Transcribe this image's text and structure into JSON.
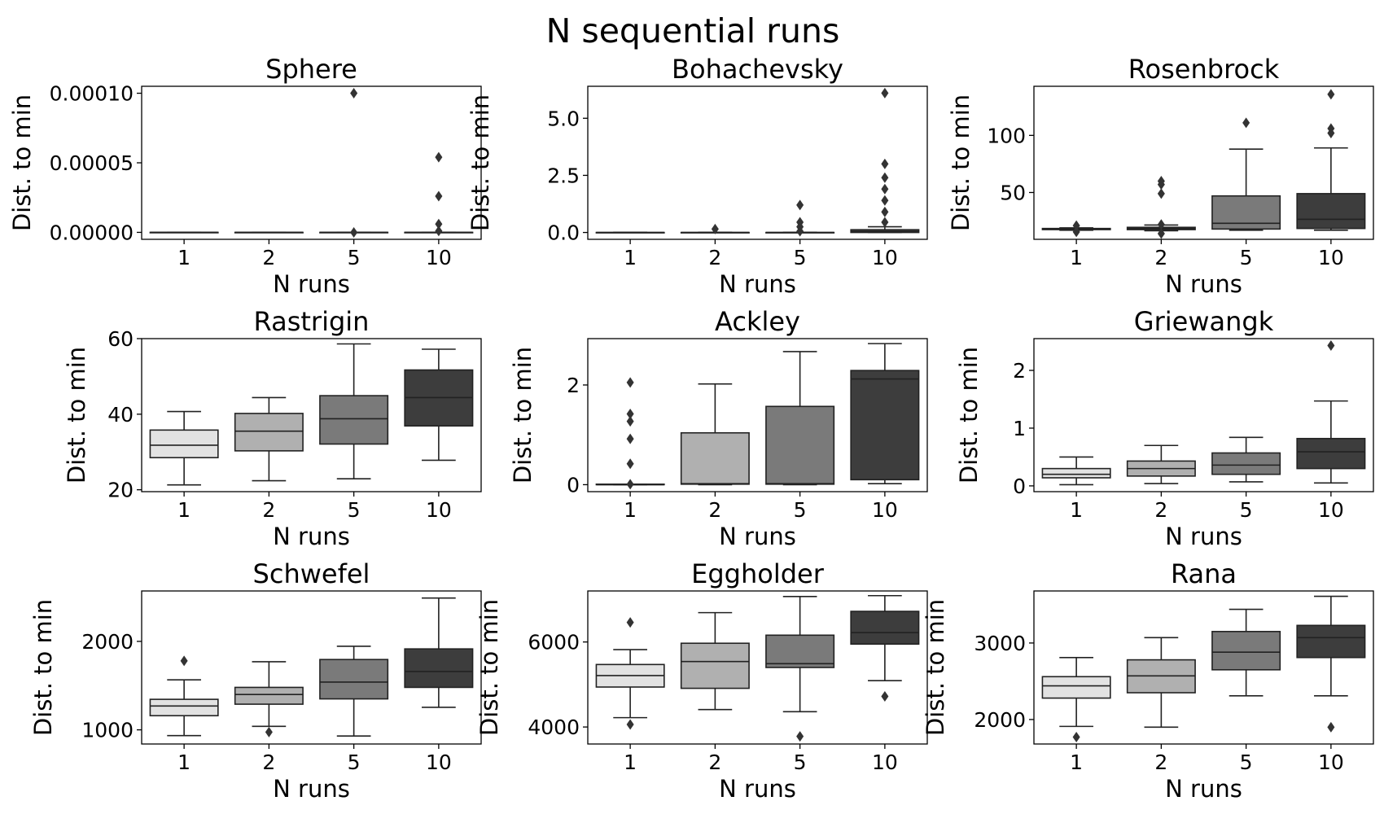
{
  "figure": {
    "suptitle": "N sequential runs",
    "box_colors": [
      "#e2e2e2",
      "#b0b0b0",
      "#7a7a7a",
      "#3d3d3d"
    ],
    "line_color": "#222222"
  },
  "chart_data": [
    {
      "type": "box",
      "title": "Sphere",
      "xlabel": "N runs",
      "ylabel": "Dist. to min",
      "categories": [
        "1",
        "2",
        "5",
        "10"
      ],
      "ylim": [
        -5e-06,
        0.000105
      ],
      "yticks": [
        0.0,
        5e-05,
        0.0001
      ],
      "ytick_labels": [
        "0.00000",
        "0.00005",
        "0.00010"
      ],
      "boxes": [
        {
          "whislo": 0,
          "q1": 0,
          "med": 0,
          "q3": 0,
          "whishi": 0,
          "fliers": []
        },
        {
          "whislo": 0,
          "q1": 0,
          "med": 0,
          "q3": 0,
          "whishi": 0,
          "fliers": []
        },
        {
          "whislo": 0,
          "q1": 0,
          "med": 0,
          "q3": 0,
          "whishi": 0,
          "fliers": [
            0.0001,
            0.0
          ]
        },
        {
          "whislo": 0,
          "q1": 0,
          "med": 0,
          "q3": 0,
          "whishi": 0,
          "fliers": [
            5.4e-05,
            2.6e-05,
            6e-06,
            1e-06
          ]
        }
      ]
    },
    {
      "type": "box",
      "title": "Bohachevsky",
      "xlabel": "N runs",
      "ylabel": "Dist. to min",
      "categories": [
        "1",
        "2",
        "5",
        "10"
      ],
      "ylim": [
        -0.3,
        6.4
      ],
      "yticks": [
        0.0,
        2.5,
        5.0
      ],
      "ytick_labels": [
        "0.0",
        "2.5",
        "5.0"
      ],
      "boxes": [
        {
          "whislo": 0,
          "q1": 0,
          "med": 0,
          "q3": 0,
          "whishi": 0,
          "fliers": []
        },
        {
          "whislo": 0,
          "q1": 0,
          "med": 0,
          "q3": 0,
          "whishi": 0,
          "fliers": [
            0.15
          ]
        },
        {
          "whislo": 0,
          "q1": 0,
          "med": 0,
          "q3": 0,
          "whishi": 0,
          "fliers": [
            1.2,
            0.45,
            0.25,
            0.05
          ]
        },
        {
          "whislo": 0,
          "q1": 0.0,
          "med": 0.04,
          "q3": 0.12,
          "whishi": 0.25,
          "fliers": [
            6.1,
            3.0,
            2.4,
            1.9,
            1.4,
            0.9,
            0.45
          ]
        }
      ]
    },
    {
      "type": "box",
      "title": "Rosenbrock",
      "xlabel": "N runs",
      "ylabel": "Dist. to min",
      "categories": [
        "1",
        "2",
        "5",
        "10"
      ],
      "ylim": [
        9,
        143
      ],
      "yticks": [
        50,
        100
      ],
      "ytick_labels": [
        "50",
        "100"
      ],
      "boxes": [
        {
          "whislo": 17,
          "q1": 17.5,
          "med": 18,
          "q3": 18.5,
          "whishi": 19,
          "fliers": [
            21,
            15.5
          ]
        },
        {
          "whislo": 16.5,
          "q1": 17.5,
          "med": 18.5,
          "q3": 19.5,
          "whishi": 21.5,
          "fliers": [
            60,
            57,
            49,
            22,
            14
          ]
        },
        {
          "whislo": 17,
          "q1": 18,
          "med": 23,
          "q3": 47,
          "whishi": 88,
          "fliers": [
            111
          ]
        },
        {
          "whislo": 17,
          "q1": 18.5,
          "med": 26.5,
          "q3": 49,
          "whishi": 89,
          "fliers": [
            136,
            106,
            102
          ]
        }
      ]
    },
    {
      "type": "box",
      "title": "Rastrigin",
      "xlabel": "N runs",
      "ylabel": "Dist. to min",
      "categories": [
        "1",
        "2",
        "5",
        "10"
      ],
      "ylim": [
        19.5,
        60
      ],
      "yticks": [
        20,
        40,
        60
      ],
      "ytick_labels": [
        "20",
        "40",
        "60"
      ],
      "boxes": [
        {
          "whislo": 21.3,
          "q1": 28.5,
          "med": 31.8,
          "q3": 35.8,
          "whishi": 40.7,
          "fliers": []
        },
        {
          "whislo": 22.4,
          "q1": 30.3,
          "med": 35.5,
          "q3": 40.2,
          "whishi": 44.4,
          "fliers": []
        },
        {
          "whislo": 22.9,
          "q1": 32.1,
          "med": 38.8,
          "q3": 44.9,
          "whishi": 58.6,
          "fliers": []
        },
        {
          "whislo": 27.8,
          "q1": 36.9,
          "med": 44.4,
          "q3": 51.7,
          "whishi": 57.2,
          "fliers": []
        }
      ]
    },
    {
      "type": "box",
      "title": "Ackley",
      "xlabel": "N runs",
      "ylabel": "Dist. to min",
      "categories": [
        "1",
        "2",
        "5",
        "10"
      ],
      "ylim": [
        -0.14,
        2.93
      ],
      "yticks": [
        0,
        2
      ],
      "ytick_labels": [
        "0",
        "2"
      ],
      "boxes": [
        {
          "whislo": 0,
          "q1": 0.0,
          "med": 0.0,
          "q3": 0.01,
          "whishi": 0.01,
          "fliers": [
            2.05,
            1.42,
            1.27,
            0.92,
            0.42,
            0.01
          ]
        },
        {
          "whislo": 0,
          "q1": 0.01,
          "med": 0.02,
          "q3": 1.04,
          "whishi": 2.02,
          "fliers": []
        },
        {
          "whislo": 0,
          "q1": 0.01,
          "med": 0.02,
          "q3": 1.57,
          "whishi": 2.67,
          "fliers": []
        },
        {
          "whislo": 0.02,
          "q1": 0.1,
          "med": 2.12,
          "q3": 2.29,
          "whishi": 2.83,
          "fliers": []
        }
      ]
    },
    {
      "type": "box",
      "title": "Griewangk",
      "xlabel": "N runs",
      "ylabel": "Dist. to min",
      "categories": [
        "1",
        "2",
        "5",
        "10"
      ],
      "ylim": [
        -0.1,
        2.55
      ],
      "yticks": [
        0,
        1,
        2
      ],
      "ytick_labels": [
        "0",
        "1",
        "2"
      ],
      "boxes": [
        {
          "whislo": 0.02,
          "q1": 0.14,
          "med": 0.2,
          "q3": 0.3,
          "whishi": 0.5,
          "fliers": []
        },
        {
          "whislo": 0.04,
          "q1": 0.17,
          "med": 0.3,
          "q3": 0.43,
          "whishi": 0.7,
          "fliers": []
        },
        {
          "whislo": 0.07,
          "q1": 0.2,
          "med": 0.36,
          "q3": 0.57,
          "whishi": 0.84,
          "fliers": []
        },
        {
          "whislo": 0.05,
          "q1": 0.3,
          "med": 0.59,
          "q3": 0.82,
          "whishi": 1.47,
          "fliers": [
            2.43
          ]
        }
      ]
    },
    {
      "type": "box",
      "title": "Schwefel",
      "xlabel": "N runs",
      "ylabel": "Dist. to min",
      "categories": [
        "1",
        "2",
        "5",
        "10"
      ],
      "ylim": [
        840,
        2570
      ],
      "yticks": [
        1000,
        2000
      ],
      "ytick_labels": [
        "1000",
        "2000"
      ],
      "boxes": [
        {
          "whislo": 935,
          "q1": 1160,
          "med": 1270,
          "q3": 1345,
          "whishi": 1565,
          "fliers": [
            1780
          ]
        },
        {
          "whislo": 1040,
          "q1": 1290,
          "med": 1400,
          "q3": 1480,
          "whishi": 1770,
          "fliers": [
            975
          ]
        },
        {
          "whislo": 930,
          "q1": 1350,
          "med": 1540,
          "q3": 1795,
          "whishi": 1945,
          "fliers": []
        },
        {
          "whislo": 1255,
          "q1": 1480,
          "med": 1660,
          "q3": 1915,
          "whishi": 2490,
          "fliers": []
        }
      ]
    },
    {
      "type": "box",
      "title": "Eggholder",
      "xlabel": "N runs",
      "ylabel": "Dist. to min",
      "categories": [
        "1",
        "2",
        "5",
        "10"
      ],
      "ylim": [
        3600,
        7200
      ],
      "yticks": [
        4000,
        6000
      ],
      "ytick_labels": [
        "4000",
        "6000"
      ],
      "boxes": [
        {
          "whislo": 4220,
          "q1": 4940,
          "med": 5210,
          "q3": 5470,
          "whishi": 5820,
          "fliers": [
            6460,
            4060
          ]
        },
        {
          "whislo": 4410,
          "q1": 4910,
          "med": 5540,
          "q3": 5970,
          "whishi": 6690,
          "fliers": []
        },
        {
          "whislo": 4360,
          "q1": 5400,
          "med": 5490,
          "q3": 6160,
          "whishi": 7070,
          "fliers": [
            3780
          ]
        },
        {
          "whislo": 5090,
          "q1": 5950,
          "med": 6220,
          "q3": 6720,
          "whishi": 7090,
          "fliers": [
            4720
          ]
        }
      ]
    },
    {
      "type": "box",
      "title": "Rana",
      "xlabel": "N runs",
      "ylabel": "Dist. to min",
      "categories": [
        "1",
        "2",
        "5",
        "10"
      ],
      "ylim": [
        1680,
        3680
      ],
      "yticks": [
        2000,
        3000
      ],
      "ytick_labels": [
        "2000",
        "3000"
      ],
      "boxes": [
        {
          "whislo": 1910,
          "q1": 2280,
          "med": 2440,
          "q3": 2560,
          "whishi": 2810,
          "fliers": [
            1770
          ]
        },
        {
          "whislo": 1900,
          "q1": 2350,
          "med": 2570,
          "q3": 2780,
          "whishi": 3070,
          "fliers": []
        },
        {
          "whislo": 2310,
          "q1": 2650,
          "med": 2880,
          "q3": 3150,
          "whishi": 3440,
          "fliers": []
        },
        {
          "whislo": 2310,
          "q1": 2810,
          "med": 3070,
          "q3": 3230,
          "whishi": 3610,
          "fliers": [
            1900
          ]
        }
      ]
    }
  ]
}
